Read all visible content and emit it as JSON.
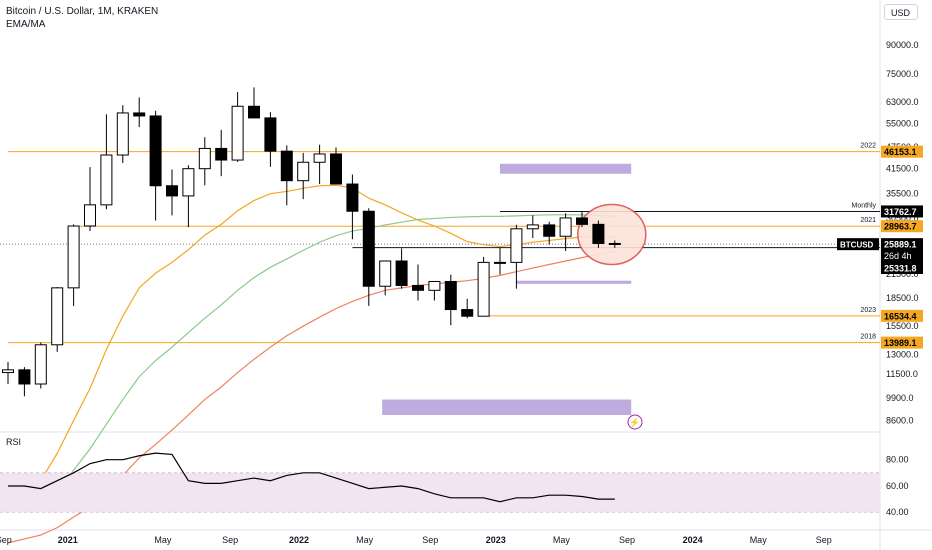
{
  "header": {
    "title": "Bitcoin / U.S. Dollar, 1M, KRAKEN",
    "indicator": "EMA/MA"
  },
  "currency_button": "USD",
  "rsi_label": "RSI",
  "colors": {
    "up": "#ffffff",
    "down": "#000000",
    "ema_orange": "#f5a623",
    "ema_green": "#8cc98c",
    "ma_red": "#f08060",
    "level_orange": "#f5a623",
    "level_black": "#131722",
    "purple_box": "#b39ddb",
    "circle": "#d9534f",
    "circle_fill": "#fbe3d9",
    "rsi_band": "#f3e5f0",
    "rsi_band_line": "#c9b3cf"
  },
  "chart_data": [
    {
      "type": "candlestick",
      "log_scale": true,
      "ylim": [
        8000,
        100000
      ],
      "y_ticks": [
        "90000.0",
        "75000.0",
        "63000.0",
        "55000.0",
        "47500.0",
        "41500.0",
        "35500.0",
        "30500.0",
        "25500.0",
        "21500.0",
        "18500.0",
        "15500.0",
        "13000.0",
        "11500.0",
        "9900.0",
        "8600.0"
      ],
      "x_ticks": [
        "Sep",
        "2021",
        "May",
        "Sep",
        "2022",
        "May",
        "Sep",
        "2023",
        "May",
        "Sep",
        "2024",
        "May",
        "Sep"
      ],
      "candles": [
        {
          "o": 11600,
          "h": 12400,
          "l": 10800,
          "c": 11800
        },
        {
          "o": 11800,
          "h": 12000,
          "l": 10000,
          "c": 10800
        },
        {
          "o": 10800,
          "h": 14000,
          "l": 10500,
          "c": 13800
        },
        {
          "o": 13800,
          "h": 19800,
          "l": 13200,
          "c": 19700
        },
        {
          "o": 19700,
          "h": 29300,
          "l": 17600,
          "c": 29000
        },
        {
          "o": 29000,
          "h": 41900,
          "l": 28100,
          "c": 33100
        },
        {
          "o": 33100,
          "h": 58300,
          "l": 32200,
          "c": 45200
        },
        {
          "o": 45200,
          "h": 61700,
          "l": 43000,
          "c": 58800
        },
        {
          "o": 58800,
          "h": 64800,
          "l": 53800,
          "c": 57700
        },
        {
          "o": 57700,
          "h": 59600,
          "l": 30000,
          "c": 37300
        },
        {
          "o": 37300,
          "h": 41300,
          "l": 31000,
          "c": 35000
        },
        {
          "o": 35000,
          "h": 42400,
          "l": 28800,
          "c": 41500
        },
        {
          "o": 41500,
          "h": 50500,
          "l": 37400,
          "c": 47100
        },
        {
          "o": 47100,
          "h": 52900,
          "l": 39600,
          "c": 43800
        },
        {
          "o": 43800,
          "h": 67000,
          "l": 43300,
          "c": 61300
        },
        {
          "o": 61300,
          "h": 69000,
          "l": 57800,
          "c": 57000
        },
        {
          "o": 57000,
          "h": 59100,
          "l": 42000,
          "c": 46300
        },
        {
          "o": 46300,
          "h": 48000,
          "l": 33000,
          "c": 38500
        },
        {
          "o": 38500,
          "h": 45800,
          "l": 34300,
          "c": 43200
        },
        {
          "o": 43200,
          "h": 48200,
          "l": 37700,
          "c": 45500
        },
        {
          "o": 45500,
          "h": 47400,
          "l": 37700,
          "c": 37700
        },
        {
          "o": 37700,
          "h": 40000,
          "l": 26700,
          "c": 31800
        },
        {
          "o": 31800,
          "h": 32400,
          "l": 17600,
          "c": 19900
        },
        {
          "o": 19900,
          "h": 22400,
          "l": 18800,
          "c": 23300
        },
        {
          "o": 23300,
          "h": 25200,
          "l": 19600,
          "c": 20000
        },
        {
          "o": 20000,
          "h": 22800,
          "l": 18200,
          "c": 19400
        },
        {
          "o": 19400,
          "h": 20500,
          "l": 18200,
          "c": 20500
        },
        {
          "o": 20500,
          "h": 21400,
          "l": 15600,
          "c": 17200
        },
        {
          "o": 17200,
          "h": 18400,
          "l": 16300,
          "c": 16500
        },
        {
          "o": 16500,
          "h": 23900,
          "l": 16500,
          "c": 23100
        },
        {
          "o": 23100,
          "h": 25300,
          "l": 21400,
          "c": 23100
        },
        {
          "o": 23100,
          "h": 29200,
          "l": 19600,
          "c": 28500
        },
        {
          "o": 28500,
          "h": 31000,
          "l": 26900,
          "c": 29200
        },
        {
          "o": 29200,
          "h": 29800,
          "l": 25800,
          "c": 27200
        },
        {
          "o": 27200,
          "h": 31400,
          "l": 24800,
          "c": 30500
        },
        {
          "o": 30500,
          "h": 31800,
          "l": 28800,
          "c": 29300
        },
        {
          "o": 29300,
          "h": 30000,
          "l": 25300,
          "c": 26000
        },
        {
          "o": 26000,
          "h": 26500,
          "l": 25300,
          "c": 25889
        }
      ],
      "levels": [
        {
          "price": 46153.1,
          "label": "2022",
          "price_label": "46153.1"
        },
        {
          "price": 31762.7,
          "label": "Monthly",
          "price_label": "31762.7"
        },
        {
          "price": 28963.7,
          "label": "2021",
          "price_label": "28963.7"
        },
        {
          "price": 25331.8,
          "label": "",
          "price_label": "25331.8"
        },
        {
          "price": 16534.4,
          "label": "2023",
          "price_label": "16534.4"
        },
        {
          "price": 13989.1,
          "label": "2018",
          "price_label": "13989.1"
        }
      ],
      "last_price": {
        "symbol": "BTCUSD",
        "price": "25889.1",
        "countdown": "26d 4h"
      },
      "ema_orange": [
        5000,
        5300,
        5900,
        7000,
        8600,
        10500,
        13400,
        16500,
        19700,
        21600,
        23100,
        25000,
        27400,
        29300,
        31900,
        34000,
        35500,
        36000,
        36700,
        37300,
        37400,
        36800,
        34500,
        33100,
        31500,
        30100,
        29000,
        27700,
        26300,
        25800,
        25500,
        25800,
        26200,
        26500,
        26800,
        27100,
        27100,
        27000
      ],
      "ema_green": [
        5000,
        5050,
        5200,
        5600,
        6300,
        7200,
        8400,
        9800,
        11300,
        12500,
        13600,
        14900,
        16300,
        17700,
        19400,
        21000,
        22400,
        23600,
        24900,
        26200,
        27300,
        28100,
        28600,
        29200,
        29700,
        30200,
        30400,
        30600,
        30700,
        30800,
        30800,
        30900,
        31000,
        31100,
        31100,
        31100,
        31000,
        30800
      ],
      "ma_red": [
        4000,
        4100,
        4200,
        4400,
        4700,
        5000,
        5500,
        6100,
        6800,
        7400,
        8100,
        8900,
        9800,
        10600,
        11600,
        12600,
        13600,
        14600,
        15500,
        16400,
        17300,
        18100,
        18800,
        19400,
        19700,
        20000,
        20200,
        20400,
        20600,
        20900,
        21300,
        21800,
        22300,
        22800,
        23300,
        23800,
        24300,
        24800
      ],
      "boxes": [
        {
          "from_bar": 30,
          "to_bar": 38,
          "top": 42800,
          "bottom": 40200
        },
        {
          "from_bar": 31,
          "to_bar": 38,
          "top": 20600,
          "bottom": 20200
        },
        {
          "from_bar": 23,
          "to_bar": 38,
          "top": 9800,
          "bottom": 8900
        }
      ]
    },
    {
      "type": "line",
      "name": "RSI",
      "ylim": [
        28,
        95
      ],
      "y_ticks": [
        "80.00",
        "60.00",
        "40.00"
      ],
      "band": [
        40,
        70
      ],
      "values": [
        60,
        60,
        58,
        64,
        70,
        77,
        80,
        80,
        83,
        85,
        84,
        64,
        62,
        62,
        64,
        66,
        64,
        68,
        70,
        70,
        66,
        62,
        58,
        59,
        60,
        58,
        54,
        51,
        51,
        51,
        48,
        51,
        51,
        53,
        53,
        52,
        50,
        50
      ]
    }
  ]
}
